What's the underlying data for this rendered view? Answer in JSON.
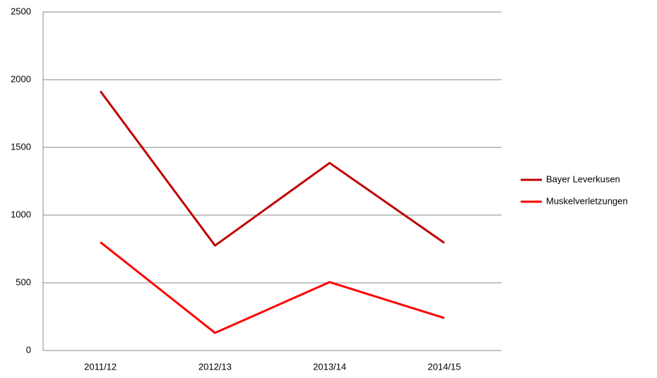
{
  "chart_data": {
    "type": "line",
    "categories": [
      "2011/12",
      "2012/13",
      "2013/14",
      "2014/15"
    ],
    "series": [
      {
        "name": "Bayer Leverkusen",
        "color": "#c00000",
        "values": [
          1915,
          775,
          1385,
          795
        ]
      },
      {
        "name": "Muskelverletzungen",
        "color": "#ff0000",
        "values": [
          800,
          130,
          505,
          240
        ]
      }
    ],
    "ylim": [
      0,
      2500
    ],
    "yticks": [
      0,
      500,
      1000,
      1500,
      2000,
      2500
    ],
    "grid": true,
    "legend": "right"
  }
}
